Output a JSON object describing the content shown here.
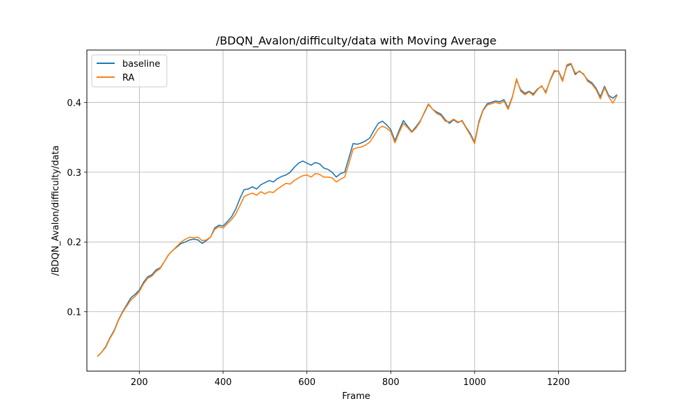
{
  "chart_data": {
    "type": "line",
    "title": "/BDQN_Avalon/difficulty/data with Moving Average",
    "xlabel": "Frame",
    "ylabel": "/BDQN_Avalon/difficulty/data",
    "xlim": [
      75,
      1360
    ],
    "ylim": [
      0.015,
      0.475
    ],
    "xticks": [
      200,
      400,
      600,
      800,
      1000,
      1200
    ],
    "yticks": [
      0.1,
      0.2,
      0.3,
      0.4
    ],
    "grid": true,
    "legend_position": "top-left",
    "series": [
      {
        "name": "baseline",
        "color": "#1f77b4",
        "points": [
          [
            100,
            0.036
          ],
          [
            110,
            0.042
          ],
          [
            120,
            0.05
          ],
          [
            130,
            0.063
          ],
          [
            140,
            0.073
          ],
          [
            150,
            0.088
          ],
          [
            160,
            0.1
          ],
          [
            170,
            0.11
          ],
          [
            180,
            0.12
          ],
          [
            190,
            0.125
          ],
          [
            200,
            0.131
          ],
          [
            210,
            0.142
          ],
          [
            220,
            0.15
          ],
          [
            230,
            0.153
          ],
          [
            240,
            0.16
          ],
          [
            250,
            0.163
          ],
          [
            260,
            0.172
          ],
          [
            270,
            0.182
          ],
          [
            280,
            0.188
          ],
          [
            290,
            0.193
          ],
          [
            300,
            0.198
          ],
          [
            310,
            0.2
          ],
          [
            320,
            0.203
          ],
          [
            330,
            0.204
          ],
          [
            340,
            0.203
          ],
          [
            350,
            0.198
          ],
          [
            360,
            0.202
          ],
          [
            370,
            0.207
          ],
          [
            380,
            0.22
          ],
          [
            390,
            0.224
          ],
          [
            400,
            0.223
          ],
          [
            410,
            0.229
          ],
          [
            420,
            0.236
          ],
          [
            430,
            0.247
          ],
          [
            440,
            0.262
          ],
          [
            450,
            0.275
          ],
          [
            460,
            0.276
          ],
          [
            470,
            0.279
          ],
          [
            480,
            0.276
          ],
          [
            490,
            0.282
          ],
          [
            500,
            0.285
          ],
          [
            510,
            0.288
          ],
          [
            520,
            0.286
          ],
          [
            530,
            0.291
          ],
          [
            540,
            0.294
          ],
          [
            550,
            0.296
          ],
          [
            560,
            0.3
          ],
          [
            570,
            0.307
          ],
          [
            580,
            0.313
          ],
          [
            590,
            0.316
          ],
          [
            600,
            0.313
          ],
          [
            610,
            0.31
          ],
          [
            620,
            0.314
          ],
          [
            630,
            0.312
          ],
          [
            640,
            0.306
          ],
          [
            650,
            0.304
          ],
          [
            660,
            0.3
          ],
          [
            670,
            0.293
          ],
          [
            680,
            0.298
          ],
          [
            690,
            0.3
          ],
          [
            700,
            0.32
          ],
          [
            710,
            0.341
          ],
          [
            720,
            0.34
          ],
          [
            730,
            0.342
          ],
          [
            740,
            0.345
          ],
          [
            750,
            0.349
          ],
          [
            760,
            0.36
          ],
          [
            770,
            0.37
          ],
          [
            780,
            0.373
          ],
          [
            790,
            0.368
          ],
          [
            800,
            0.361
          ],
          [
            810,
            0.345
          ],
          [
            820,
            0.36
          ],
          [
            830,
            0.374
          ],
          [
            840,
            0.366
          ],
          [
            850,
            0.358
          ],
          [
            860,
            0.365
          ],
          [
            870,
            0.373
          ],
          [
            880,
            0.385
          ],
          [
            890,
            0.397
          ],
          [
            900,
            0.39
          ],
          [
            910,
            0.386
          ],
          [
            920,
            0.383
          ],
          [
            930,
            0.375
          ],
          [
            940,
            0.37
          ],
          [
            950,
            0.375
          ],
          [
            960,
            0.371
          ],
          [
            970,
            0.374
          ],
          [
            980,
            0.364
          ],
          [
            990,
            0.355
          ],
          [
            1000,
            0.343
          ],
          [
            1010,
            0.372
          ],
          [
            1020,
            0.389
          ],
          [
            1030,
            0.398
          ],
          [
            1040,
            0.4
          ],
          [
            1050,
            0.402
          ],
          [
            1060,
            0.401
          ],
          [
            1070,
            0.404
          ],
          [
            1080,
            0.392
          ],
          [
            1090,
            0.408
          ],
          [
            1100,
            0.432
          ],
          [
            1110,
            0.418
          ],
          [
            1120,
            0.413
          ],
          [
            1130,
            0.416
          ],
          [
            1140,
            0.412
          ],
          [
            1150,
            0.419
          ],
          [
            1160,
            0.423
          ],
          [
            1170,
            0.415
          ],
          [
            1180,
            0.431
          ],
          [
            1190,
            0.444
          ],
          [
            1200,
            0.445
          ],
          [
            1210,
            0.432
          ],
          [
            1220,
            0.452
          ],
          [
            1230,
            0.455
          ],
          [
            1240,
            0.44
          ],
          [
            1250,
            0.445
          ],
          [
            1260,
            0.44
          ],
          [
            1270,
            0.432
          ],
          [
            1280,
            0.428
          ],
          [
            1290,
            0.42
          ],
          [
            1300,
            0.408
          ],
          [
            1310,
            0.423
          ],
          [
            1320,
            0.41
          ],
          [
            1330,
            0.406
          ],
          [
            1340,
            0.411
          ]
        ]
      },
      {
        "name": "RA",
        "color": "#ff7f0e",
        "points": [
          [
            100,
            0.036
          ],
          [
            110,
            0.042
          ],
          [
            120,
            0.049
          ],
          [
            130,
            0.062
          ],
          [
            140,
            0.072
          ],
          [
            150,
            0.087
          ],
          [
            160,
            0.099
          ],
          [
            170,
            0.108
          ],
          [
            180,
            0.117
          ],
          [
            190,
            0.122
          ],
          [
            200,
            0.129
          ],
          [
            210,
            0.14
          ],
          [
            220,
            0.148
          ],
          [
            230,
            0.151
          ],
          [
            240,
            0.158
          ],
          [
            250,
            0.162
          ],
          [
            260,
            0.172
          ],
          [
            270,
            0.182
          ],
          [
            280,
            0.188
          ],
          [
            290,
            0.194
          ],
          [
            300,
            0.2
          ],
          [
            310,
            0.204
          ],
          [
            320,
            0.207
          ],
          [
            330,
            0.206
          ],
          [
            340,
            0.207
          ],
          [
            350,
            0.202
          ],
          [
            360,
            0.203
          ],
          [
            370,
            0.207
          ],
          [
            380,
            0.218
          ],
          [
            390,
            0.222
          ],
          [
            400,
            0.22
          ],
          [
            410,
            0.226
          ],
          [
            420,
            0.232
          ],
          [
            430,
            0.24
          ],
          [
            440,
            0.252
          ],
          [
            450,
            0.265
          ],
          [
            460,
            0.268
          ],
          [
            470,
            0.27
          ],
          [
            480,
            0.267
          ],
          [
            490,
            0.272
          ],
          [
            500,
            0.269
          ],
          [
            510,
            0.272
          ],
          [
            520,
            0.271
          ],
          [
            530,
            0.276
          ],
          [
            540,
            0.28
          ],
          [
            550,
            0.284
          ],
          [
            560,
            0.283
          ],
          [
            570,
            0.288
          ],
          [
            580,
            0.292
          ],
          [
            590,
            0.295
          ],
          [
            600,
            0.296
          ],
          [
            610,
            0.293
          ],
          [
            620,
            0.298
          ],
          [
            630,
            0.297
          ],
          [
            640,
            0.293
          ],
          [
            650,
            0.293
          ],
          [
            660,
            0.292
          ],
          [
            670,
            0.286
          ],
          [
            680,
            0.29
          ],
          [
            690,
            0.293
          ],
          [
            700,
            0.312
          ],
          [
            710,
            0.333
          ],
          [
            720,
            0.335
          ],
          [
            730,
            0.336
          ],
          [
            740,
            0.339
          ],
          [
            750,
            0.343
          ],
          [
            760,
            0.352
          ],
          [
            770,
            0.362
          ],
          [
            780,
            0.366
          ],
          [
            790,
            0.363
          ],
          [
            800,
            0.358
          ],
          [
            810,
            0.342
          ],
          [
            820,
            0.357
          ],
          [
            830,
            0.37
          ],
          [
            840,
            0.364
          ],
          [
            850,
            0.357
          ],
          [
            860,
            0.363
          ],
          [
            870,
            0.372
          ],
          [
            880,
            0.386
          ],
          [
            890,
            0.398
          ],
          [
            900,
            0.39
          ],
          [
            910,
            0.384
          ],
          [
            920,
            0.381
          ],
          [
            930,
            0.373
          ],
          [
            940,
            0.372
          ],
          [
            950,
            0.376
          ],
          [
            960,
            0.372
          ],
          [
            970,
            0.373
          ],
          [
            980,
            0.363
          ],
          [
            990,
            0.353
          ],
          [
            1000,
            0.341
          ],
          [
            1010,
            0.37
          ],
          [
            1020,
            0.388
          ],
          [
            1030,
            0.396
          ],
          [
            1040,
            0.398
          ],
          [
            1050,
            0.4
          ],
          [
            1060,
            0.398
          ],
          [
            1070,
            0.402
          ],
          [
            1080,
            0.39
          ],
          [
            1090,
            0.407
          ],
          [
            1100,
            0.434
          ],
          [
            1110,
            0.416
          ],
          [
            1120,
            0.411
          ],
          [
            1130,
            0.415
          ],
          [
            1140,
            0.41
          ],
          [
            1150,
            0.418
          ],
          [
            1160,
            0.424
          ],
          [
            1170,
            0.413
          ],
          [
            1180,
            0.432
          ],
          [
            1190,
            0.446
          ],
          [
            1200,
            0.444
          ],
          [
            1210,
            0.43
          ],
          [
            1220,
            0.454
          ],
          [
            1230,
            0.456
          ],
          [
            1240,
            0.442
          ],
          [
            1250,
            0.444
          ],
          [
            1260,
            0.441
          ],
          [
            1270,
            0.43
          ],
          [
            1280,
            0.426
          ],
          [
            1290,
            0.418
          ],
          [
            1300,
            0.405
          ],
          [
            1310,
            0.421
          ],
          [
            1320,
            0.408
          ],
          [
            1330,
            0.399
          ],
          [
            1340,
            0.41
          ]
        ]
      }
    ]
  }
}
